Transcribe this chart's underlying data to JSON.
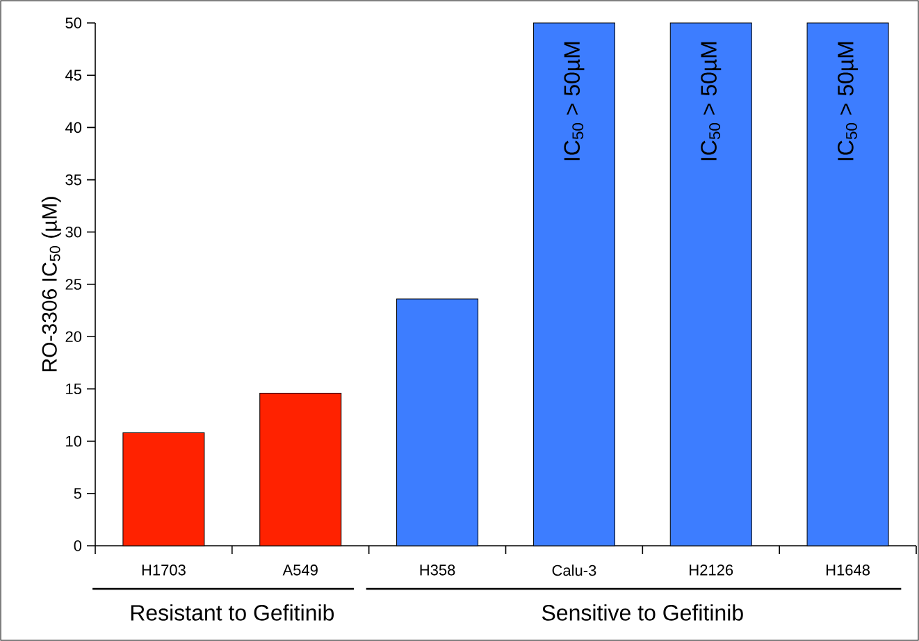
{
  "chart_data": {
    "type": "bar",
    "ylabel": "RO-3306 IC$_{50}$ (µM)",
    "categories": [
      "H1703",
      "A549",
      "H358",
      "Calu-3",
      "H2126",
      "H1648"
    ],
    "values": [
      10.8,
      14.6,
      23.6,
      50,
      50,
      50
    ],
    "colors": [
      "#ff2200",
      "#ff2200",
      "#3d7dff",
      "#3d7dff",
      "#3d7dff",
      "#3d7dff"
    ],
    "ylim": [
      0,
      50
    ],
    "yticks": [
      0,
      5,
      10,
      15,
      20,
      25,
      30,
      35,
      40,
      45,
      50
    ],
    "grid": false,
    "annotations": [
      {
        "text": "IC$_{50}$ > 50µM",
        "x": "Calu-3",
        "y": 50
      },
      {
        "text": "IC$_{50}$ > 50µM",
        "x": "H2126",
        "y": 50
      },
      {
        "text": "IC$_{50}$ > 50µM",
        "x": "H1648",
        "y": 50
      },
      "Resistant to Gefitinib",
      "Sensitive to Gefitinib"
    ]
  }
}
